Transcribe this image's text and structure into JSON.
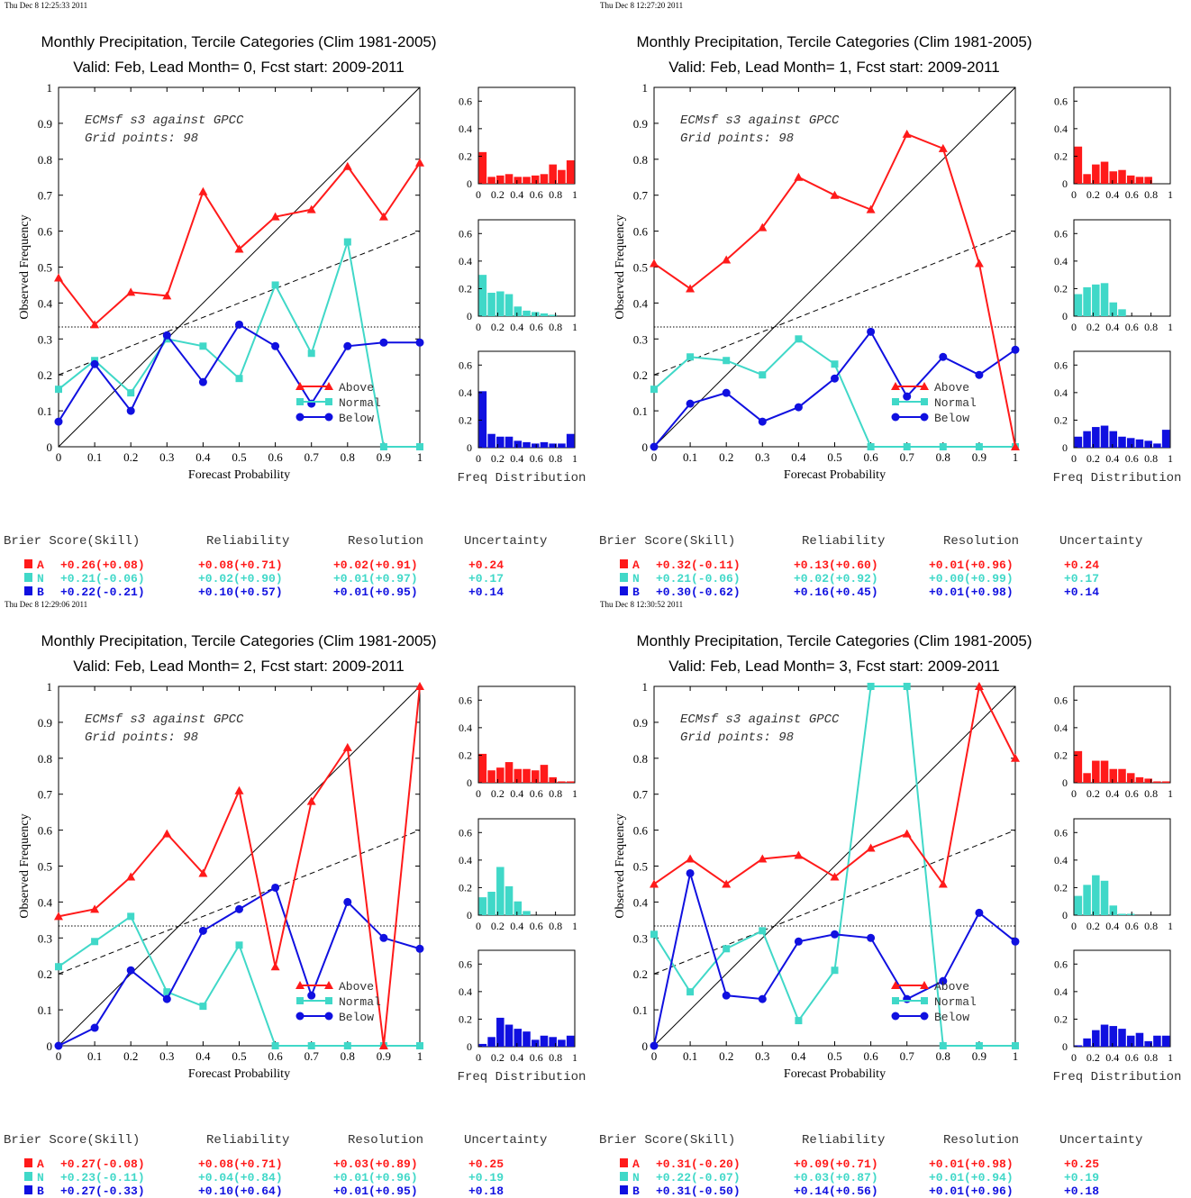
{
  "colors": {
    "above": "#ff1a1a",
    "normal": "#40d8c8",
    "below": "#1010e0",
    "axis": "#000000"
  },
  "chart_data": [
    {
      "type": "line",
      "timestamp": "Thu Dec  8 12:25:33 2011",
      "title": "Monthly Precipitation, Tercile Categories (Clim 1981-2005)",
      "subtitle": "Valid: Feb, Lead Month= 0, Fcst start: 2009-2011",
      "annotation1": "ECMsf s3 against GPCC",
      "annotation2": "Grid points:    98",
      "xlabel": "Forecast Probability",
      "ylabel": "Observed Frequency",
      "xlim": [
        0,
        1
      ],
      "ylim": [
        0,
        1
      ],
      "x": [
        0,
        0.1,
        0.2,
        0.3,
        0.4,
        0.5,
        0.6,
        0.7,
        0.8,
        0.9,
        1
      ],
      "x_ticks": [
        "0",
        "0.1",
        "0.2",
        "0.3",
        "0.4",
        "0.5",
        "0.6",
        "0.7",
        "0.8",
        "0.9",
        "1"
      ],
      "y_ticks": [
        "0",
        "0.1",
        "0.2",
        "0.3",
        "0.4",
        "0.5",
        "0.6",
        "0.7",
        "0.8",
        "0.9",
        "1"
      ],
      "legend_position": "lower-right",
      "series": [
        {
          "name": "Above",
          "values": [
            0.47,
            0.34,
            0.43,
            0.42,
            0.71,
            0.55,
            0.64,
            0.66,
            0.78,
            0.64,
            0.79
          ]
        },
        {
          "name": "Normal",
          "values": [
            0.16,
            0.24,
            0.15,
            0.3,
            0.28,
            0.19,
            0.45,
            0.26,
            0.57,
            0,
            0
          ]
        },
        {
          "name": "Below",
          "values": [
            0.07,
            0.23,
            0.1,
            0.31,
            0.18,
            0.34,
            0.28,
            0.12,
            0.28,
            0.29,
            0.29
          ]
        }
      ],
      "histograms_label": "Freq Distribution",
      "histograms": {
        "x_ticks": [
          "0",
          "0.2",
          "0.4",
          "0.6",
          "0.8",
          "1"
        ],
        "y_ticks": [
          "0",
          "0.2",
          "0.4",
          "0.6"
        ],
        "ylim": [
          0,
          0.7
        ],
        "above": [
          0.23,
          0.05,
          0.06,
          0.07,
          0.05,
          0.05,
          0.06,
          0.07,
          0.14,
          0.1,
          0.17
        ],
        "normal": [
          0.3,
          0.17,
          0.18,
          0.16,
          0.07,
          0.04,
          0.03,
          0.02,
          0.01,
          0,
          0
        ],
        "below": [
          0.41,
          0.1,
          0.08,
          0.08,
          0.05,
          0.04,
          0.03,
          0.04,
          0.03,
          0.03,
          0.1
        ]
      },
      "scores": {
        "headers": [
          "Brier Score(Skill)",
          "Reliability",
          "Resolution",
          "Uncertainty"
        ],
        "rows": [
          {
            "cat": "A",
            "brier": "+0.26(+0.08)",
            "rel": "+0.08(+0.71)",
            "res": "+0.02(+0.91)",
            "unc": "+0.24"
          },
          {
            "cat": "N",
            "brier": "+0.21(-0.06)",
            "rel": "+0.02(+0.90)",
            "res": "+0.01(+0.97)",
            "unc": "+0.17"
          },
          {
            "cat": "B",
            "brier": "+0.22(-0.21)",
            "rel": "+0.10(+0.57)",
            "res": "+0.01(+0.95)",
            "unc": "+0.14"
          }
        ]
      }
    },
    {
      "type": "line",
      "timestamp": "Thu Dec  8 12:27:20 2011",
      "title": "Monthly Precipitation, Tercile Categories (Clim 1981-2005)",
      "subtitle": "Valid: Feb, Lead Month= 1, Fcst start: 2009-2011",
      "annotation1": "ECMsf s3 against GPCC",
      "annotation2": "Grid points:    98",
      "xlabel": "Forecast Probability",
      "ylabel": "Observed Frequency",
      "xlim": [
        0,
        1
      ],
      "ylim": [
        0,
        1
      ],
      "x": [
        0,
        0.1,
        0.2,
        0.3,
        0.4,
        0.5,
        0.6,
        0.7,
        0.8,
        0.9,
        1
      ],
      "x_ticks": [
        "0",
        "0.1",
        "0.2",
        "0.3",
        "0.4",
        "0.5",
        "0.6",
        "0.7",
        "0.8",
        "0.9",
        "1"
      ],
      "y_ticks": [
        "0",
        "0.1",
        "0.2",
        "0.3",
        "0.4",
        "0.5",
        "0.6",
        "0.7",
        "0.8",
        "0.9",
        "1"
      ],
      "legend_position": "lower-right",
      "series": [
        {
          "name": "Above",
          "values": [
            0.51,
            0.44,
            0.52,
            0.61,
            0.75,
            0.7,
            0.66,
            0.87,
            0.83,
            0.51,
            0
          ]
        },
        {
          "name": "Normal",
          "values": [
            0.16,
            0.25,
            0.24,
            0.2,
            0.3,
            0.23,
            0,
            0,
            0,
            0,
            0
          ]
        },
        {
          "name": "Below",
          "values": [
            0,
            0.12,
            0.15,
            0.07,
            0.11,
            0.19,
            0.32,
            0.14,
            0.25,
            0.2,
            0.27
          ]
        }
      ],
      "histograms_label": "Freq Distribution",
      "histograms": {
        "x_ticks": [
          "0",
          "0.2",
          "0.4",
          "0.6",
          "0.8",
          "1"
        ],
        "y_ticks": [
          "0",
          "0.2",
          "0.4",
          "0.6"
        ],
        "ylim": [
          0,
          0.7
        ],
        "above": [
          0.27,
          0.07,
          0.14,
          0.16,
          0.09,
          0.1,
          0.06,
          0.05,
          0.05,
          0,
          0
        ],
        "normal": [
          0.16,
          0.21,
          0.23,
          0.24,
          0.1,
          0.05,
          0,
          0,
          0,
          0,
          0
        ],
        "below": [
          0.08,
          0.12,
          0.15,
          0.16,
          0.12,
          0.08,
          0.07,
          0.06,
          0.05,
          0.03,
          0.13
        ]
      },
      "scores": {
        "headers": [
          "Brier Score(Skill)",
          "Reliability",
          "Resolution",
          "Uncertainty"
        ],
        "rows": [
          {
            "cat": "A",
            "brier": "+0.32(-0.11)",
            "rel": "+0.13(+0.60)",
            "res": "+0.01(+0.96)",
            "unc": "+0.24"
          },
          {
            "cat": "N",
            "brier": "+0.21(-0.06)",
            "rel": "+0.02(+0.92)",
            "res": "+0.00(+0.99)",
            "unc": "+0.17"
          },
          {
            "cat": "B",
            "brier": "+0.30(-0.62)",
            "rel": "+0.16(+0.45)",
            "res": "+0.01(+0.98)",
            "unc": "+0.14"
          }
        ]
      }
    },
    {
      "type": "line",
      "timestamp": "Thu Dec  8 12:29:06 2011",
      "title": "Monthly Precipitation, Tercile Categories (Clim 1981-2005)",
      "subtitle": "Valid: Feb, Lead Month= 2, Fcst start: 2009-2011",
      "annotation1": "ECMsf s3 against GPCC",
      "annotation2": "Grid points:    98",
      "xlabel": "Forecast Probability",
      "ylabel": "Observed Frequency",
      "xlim": [
        0,
        1
      ],
      "ylim": [
        0,
        1
      ],
      "x": [
        0,
        0.1,
        0.2,
        0.3,
        0.4,
        0.5,
        0.6,
        0.7,
        0.8,
        0.9,
        1
      ],
      "x_ticks": [
        "0",
        "0.1",
        "0.2",
        "0.3",
        "0.4",
        "0.5",
        "0.6",
        "0.7",
        "0.8",
        "0.9",
        "1"
      ],
      "y_ticks": [
        "0",
        "0.1",
        "0.2",
        "0.3",
        "0.4",
        "0.5",
        "0.6",
        "0.7",
        "0.8",
        "0.9",
        "1"
      ],
      "legend_position": "lower-right",
      "series": [
        {
          "name": "Above",
          "values": [
            0.36,
            0.38,
            0.47,
            0.59,
            0.48,
            0.71,
            0.22,
            0.68,
            0.83,
            0,
            1
          ]
        },
        {
          "name": "Normal",
          "values": [
            0.22,
            0.29,
            0.36,
            0.15,
            0.11,
            0.28,
            0,
            0,
            0,
            0,
            0
          ]
        },
        {
          "name": "Below",
          "values": [
            0,
            0.05,
            0.21,
            0.13,
            0.32,
            0.38,
            0.44,
            0.14,
            0.4,
            0.3,
            0.27
          ]
        }
      ],
      "histograms_label": "Freq Distribution",
      "histograms": {
        "x_ticks": [
          "0",
          "0.2",
          "0.4",
          "0.6",
          "0.8",
          "1"
        ],
        "y_ticks": [
          "0",
          "0.2",
          "0.4",
          "0.6"
        ],
        "ylim": [
          0,
          0.7
        ],
        "above": [
          0.21,
          0.09,
          0.11,
          0.15,
          0.1,
          0.1,
          0.09,
          0.13,
          0.04,
          0.01,
          0.01
        ],
        "normal": [
          0.13,
          0.17,
          0.35,
          0.21,
          0.1,
          0.03,
          0,
          0,
          0,
          0,
          0
        ],
        "below": [
          0.02,
          0.07,
          0.21,
          0.16,
          0.13,
          0.11,
          0.05,
          0.08,
          0.07,
          0.05,
          0.08
        ]
      },
      "scores": {
        "headers": [
          "Brier Score(Skill)",
          "Reliability",
          "Resolution",
          "Uncertainty"
        ],
        "rows": [
          {
            "cat": "A",
            "brier": "+0.27(-0.08)",
            "rel": "+0.08(+0.71)",
            "res": "+0.03(+0.89)",
            "unc": "+0.25"
          },
          {
            "cat": "N",
            "brier": "+0.23(-0.11)",
            "rel": "+0.04(+0.84)",
            "res": "+0.01(+0.96)",
            "unc": "+0.19"
          },
          {
            "cat": "B",
            "brier": "+0.27(-0.33)",
            "rel": "+0.10(+0.64)",
            "res": "+0.01(+0.95)",
            "unc": "+0.18"
          }
        ]
      }
    },
    {
      "type": "line",
      "timestamp": "Thu Dec  8 12:30:52 2011",
      "title": "Monthly Precipitation, Tercile Categories (Clim 1981-2005)",
      "subtitle": "Valid: Feb, Lead Month= 3, Fcst start: 2009-2011",
      "annotation1": "ECMsf s3 against GPCC",
      "annotation2": "Grid points:    98",
      "xlabel": "Forecast Probability",
      "ylabel": "Observed Frequency",
      "xlim": [
        0,
        1
      ],
      "ylim": [
        0,
        1
      ],
      "x": [
        0,
        0.1,
        0.2,
        0.3,
        0.4,
        0.5,
        0.6,
        0.7,
        0.8,
        0.9,
        1
      ],
      "x_ticks": [
        "0",
        "0.1",
        "0.2",
        "0.3",
        "0.4",
        "0.5",
        "0.6",
        "0.7",
        "0.8",
        "0.9",
        "1"
      ],
      "y_ticks": [
        "0",
        "0.1",
        "0.2",
        "0.3",
        "0.4",
        "0.5",
        "0.6",
        "0.7",
        "0.8",
        "0.9",
        "1"
      ],
      "legend_position": "lower-right",
      "series": [
        {
          "name": "Above",
          "values": [
            0.45,
            0.52,
            0.45,
            0.52,
            0.53,
            0.47,
            0.55,
            0.59,
            0.45,
            1,
            0.8
          ]
        },
        {
          "name": "Normal",
          "values": [
            0.31,
            0.15,
            0.27,
            0.32,
            0.07,
            0.21,
            1,
            1,
            0,
            0,
            0
          ]
        },
        {
          "name": "Below",
          "values": [
            0,
            0.48,
            0.14,
            0.13,
            0.29,
            0.31,
            0.3,
            0.13,
            0.18,
            0.37,
            0.29
          ]
        }
      ],
      "histograms_label": "Freq Distribution",
      "histograms": {
        "x_ticks": [
          "0",
          "0.2",
          "0.4",
          "0.6",
          "0.8",
          "1"
        ],
        "y_ticks": [
          "0",
          "0.2",
          "0.4",
          "0.6"
        ],
        "ylim": [
          0,
          0.7
        ],
        "above": [
          0.23,
          0.07,
          0.16,
          0.16,
          0.1,
          0.1,
          0.07,
          0.04,
          0.03,
          0.01,
          0.01
        ],
        "normal": [
          0.14,
          0.22,
          0.29,
          0.25,
          0.07,
          0.01,
          0.01,
          0,
          0,
          0,
          0
        ],
        "below": [
          0.01,
          0.06,
          0.12,
          0.16,
          0.15,
          0.13,
          0.08,
          0.1,
          0.04,
          0.08,
          0.08
        ]
      },
      "scores": {
        "headers": [
          "Brier Score(Skill)",
          "Reliability",
          "Resolution",
          "Uncertainty"
        ],
        "rows": [
          {
            "cat": "A",
            "brier": "+0.31(-0.20)",
            "rel": "+0.09(+0.71)",
            "res": "+0.01(+0.98)",
            "unc": "+0.25"
          },
          {
            "cat": "N",
            "brier": "+0.22(-0.07)",
            "rel": "+0.03(+0.87)",
            "res": "+0.01(+0.94)",
            "unc": "+0.19"
          },
          {
            "cat": "B",
            "brier": "+0.31(-0.50)",
            "rel": "+0.14(+0.56)",
            "res": "+0.01(+0.96)",
            "unc": "+0.18"
          }
        ]
      }
    }
  ]
}
